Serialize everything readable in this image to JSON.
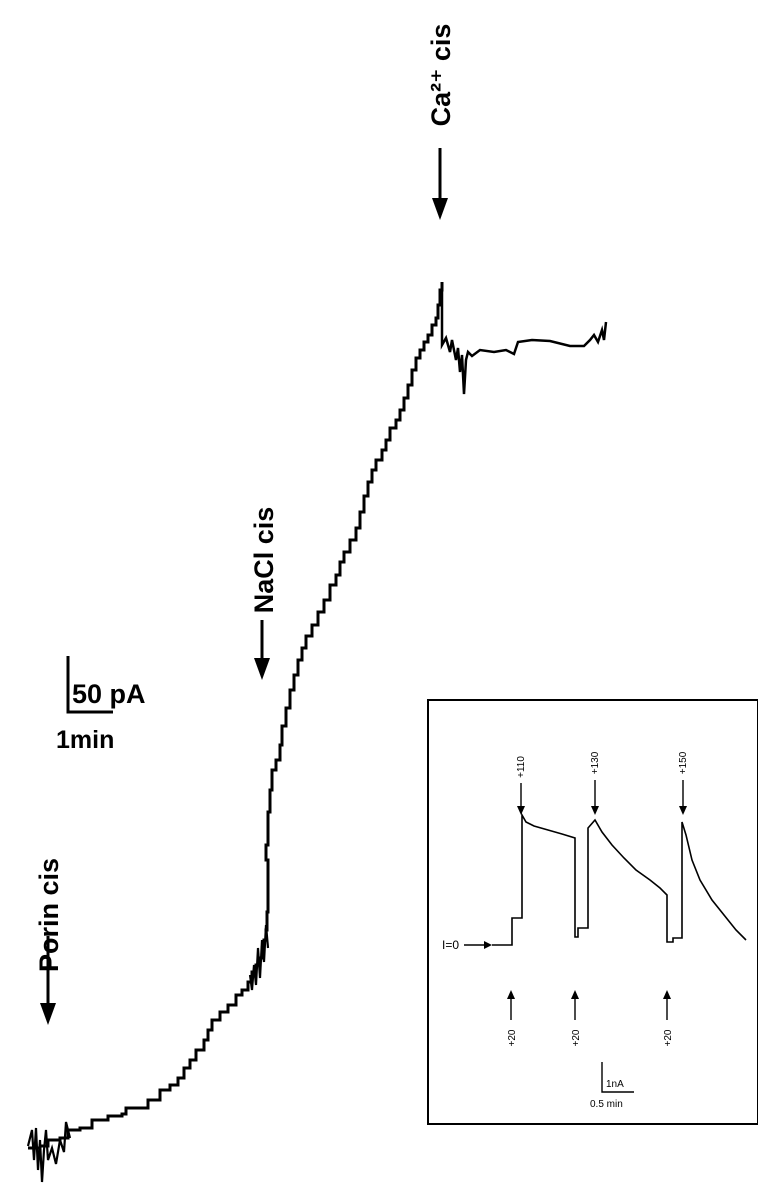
{
  "chart_data": {
    "type": "line",
    "main": {
      "annotations": [
        {
          "id": "porin",
          "label": "Porin cis"
        },
        {
          "id": "nacl",
          "label": "NaCl cis"
        },
        {
          "id": "ca",
          "label": "Ca²⁺ cis"
        }
      ],
      "scale_bar": {
        "y_label": "50 pA",
        "x_label": "1min"
      }
    },
    "inset": {
      "start_label": "I=0",
      "top_labels": [
        "+110",
        "+130",
        "+150"
      ],
      "bottom_labels": [
        "+20",
        "+20",
        "+20"
      ],
      "scale_bar": {
        "y_label": "1nA",
        "x_label": "0.5 min"
      }
    }
  }
}
